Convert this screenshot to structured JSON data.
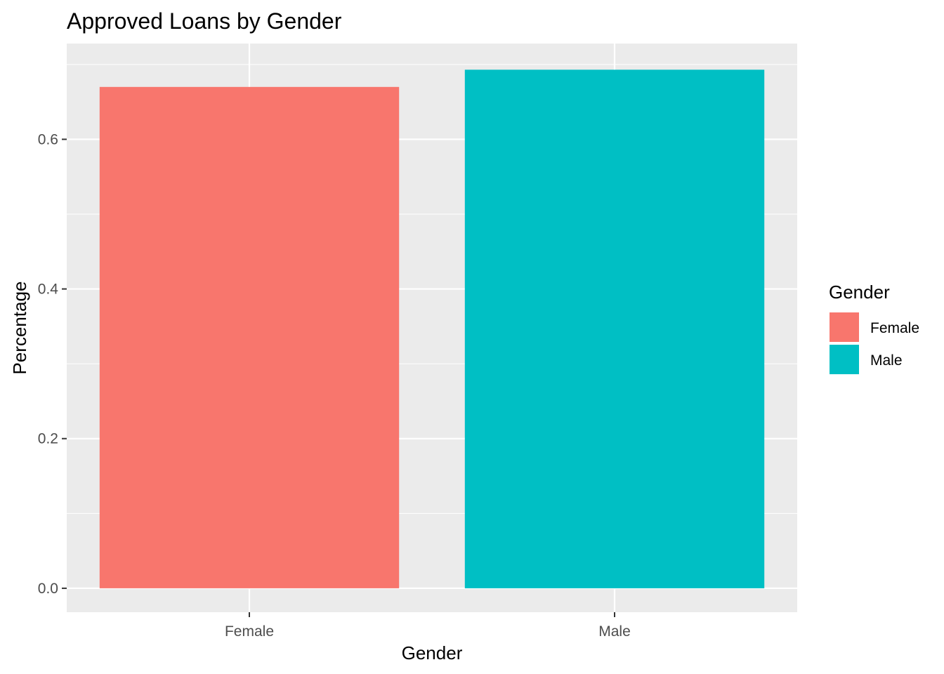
{
  "chart_data": {
    "type": "bar",
    "title": "Approved Loans by Gender",
    "xlabel": "Gender",
    "ylabel": "Percentage",
    "categories": [
      "Female",
      "Male"
    ],
    "values": [
      0.67,
      0.693
    ],
    "colors": [
      "#F8766D",
      "#00BFC4"
    ],
    "ylim": [
      -0.032,
      0.728
    ],
    "yticks": [
      0.0,
      0.2,
      0.4,
      0.6
    ],
    "ytick_labels": [
      "0.0",
      "0.2",
      "0.4",
      "0.6"
    ],
    "grid": true,
    "panel_background": "#EBEBEB",
    "gridline_color": "#FFFFFF",
    "legend": {
      "title": "Gender",
      "position": "right",
      "entries": [
        {
          "label": "Female",
          "color": "#F8766D"
        },
        {
          "label": "Male",
          "color": "#00BFC4"
        }
      ]
    }
  }
}
